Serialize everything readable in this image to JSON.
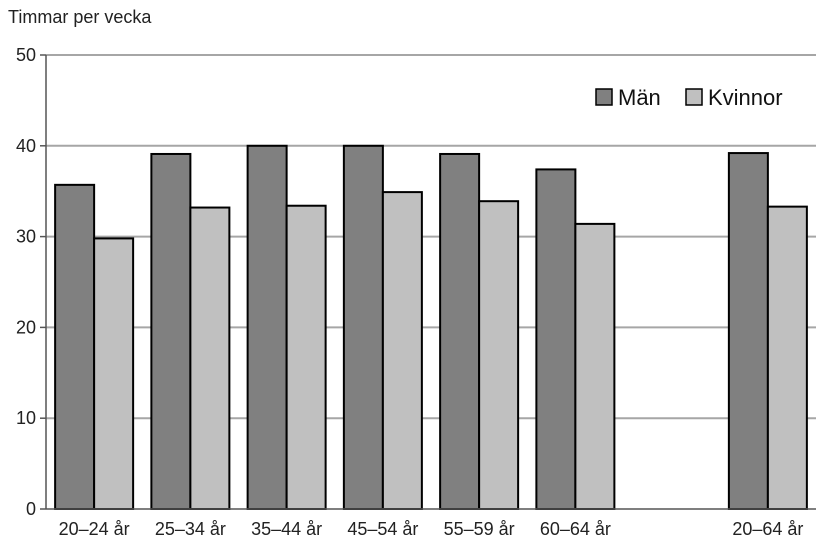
{
  "chart_data": {
    "type": "bar",
    "ylabel": "Timmar per vecka",
    "xlabel": "",
    "ylim": [
      0,
      50
    ],
    "yticks": [
      0,
      10,
      20,
      30,
      40,
      50
    ],
    "grid": true,
    "legend_position": "top-right",
    "categories": [
      "20–24 år",
      "25–34 år",
      "35–44 år",
      "45–54 år",
      "55–59 år",
      "60–64 år",
      "",
      "20–64 år"
    ],
    "series": [
      {
        "name": "Män",
        "color": "#808080",
        "values": [
          35.7,
          39.1,
          40.0,
          40.0,
          39.1,
          37.4,
          null,
          39.2
        ]
      },
      {
        "name": "Kvinnor",
        "color": "#c0c0c0",
        "values": [
          29.8,
          33.2,
          33.4,
          34.9,
          33.9,
          31.4,
          null,
          33.3
        ]
      }
    ]
  }
}
